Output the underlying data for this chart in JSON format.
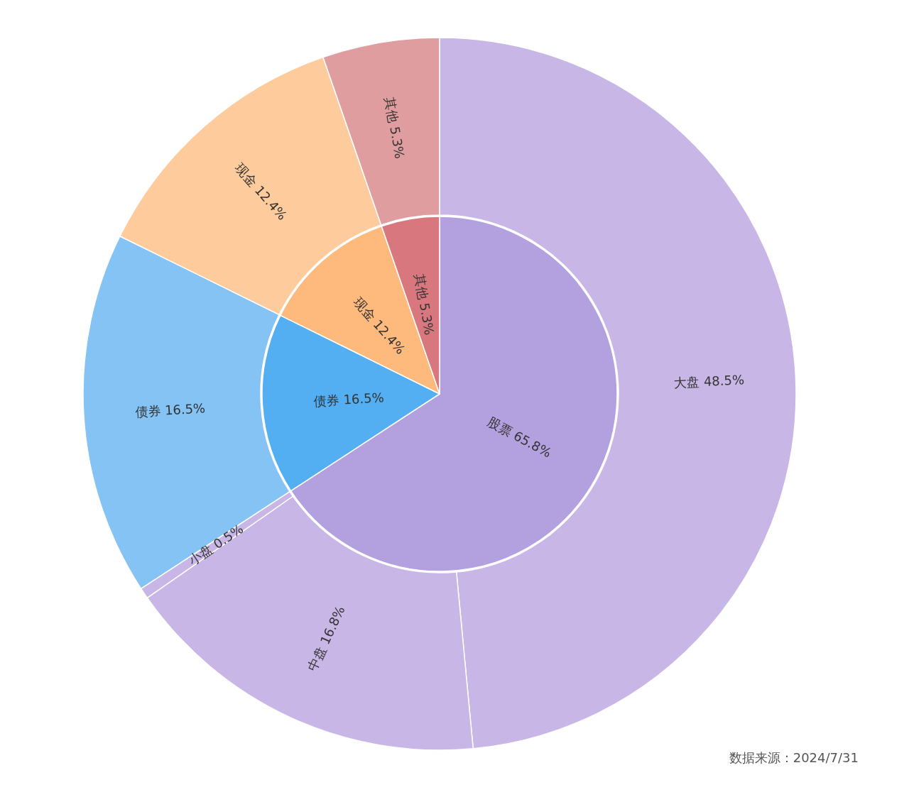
{
  "chart_data": [
    {
      "type": "donut",
      "categories": [
        "大盘",
        "中盘",
        "小盘",
        "债券",
        "现金",
        "其他"
      ],
      "values": [
        48.5,
        16.8,
        0.5,
        16.5,
        12.4,
        5.3
      ],
      "colors": [
        "#c8b7e6",
        "#c8b7e6",
        "#c8b7e6",
        "#84c3f4",
        "#fecb9d",
        "#e09d9f"
      ],
      "value_labels": [
        "48.5%",
        "16.8%",
        "0.5%",
        "16.5%",
        "12.4%",
        "5.3%"
      ],
      "legend": false,
      "annotations": [
        "数据来源：2024/7/31"
      ]
    },
    {
      "type": "pie",
      "categories": [
        "股票",
        "债券",
        "现金",
        "其他"
      ],
      "values": [
        65.8,
        16.5,
        12.4,
        5.3
      ],
      "colors": [
        "#b3a0de",
        "#53aef2",
        "#feb97d",
        "#d8787e"
      ],
      "value_labels": [
        "65.8%",
        "16.5%",
        "12.4%",
        "5.3%"
      ],
      "legend": false
    }
  ]
}
